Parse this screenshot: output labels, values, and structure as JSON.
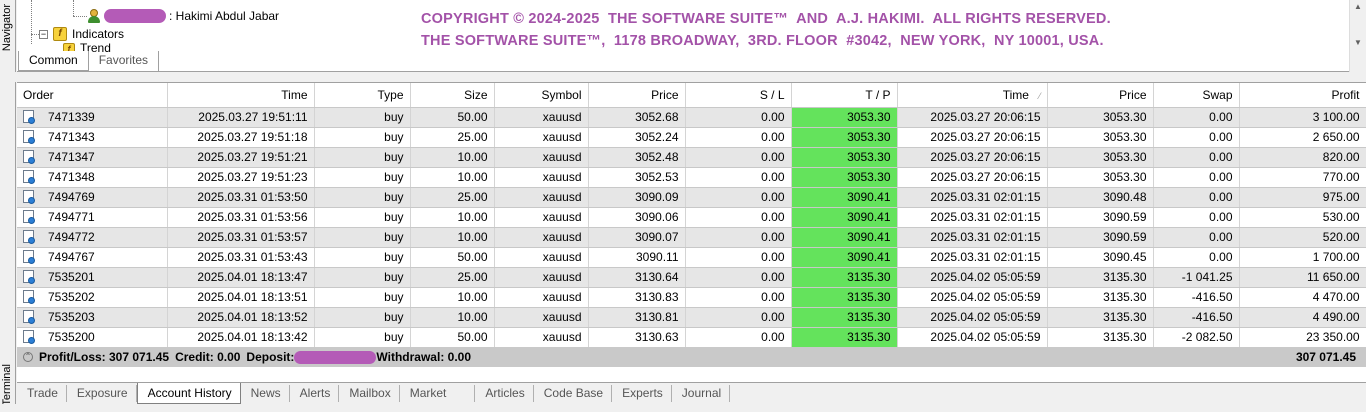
{
  "side_labels": {
    "navigator": "Navigator",
    "terminal": "Terminal"
  },
  "navigator": {
    "user_name": ": Hakimi Abdul Jabar",
    "indicators_label": "Indicators",
    "trend_label": "Trend",
    "tabs": [
      {
        "label": "Common",
        "active": true
      },
      {
        "label": "Favorites",
        "active": false
      }
    ]
  },
  "copyright": {
    "line1": "COPYRIGHT © 2024-2025  THE SOFTWARE SUITE™  AND  A.J. HAKIMI.  ALL RIGHTS RESERVED.",
    "line2": "THE SOFTWARE SUITE™,  1178 BROADWAY,  3RD. FLOOR  #3042,  NEW YORK,  NY 10001, USA."
  },
  "table": {
    "columns": [
      "Order",
      "Time",
      "Type",
      "Size",
      "Symbol",
      "Price",
      "S / L",
      "T / P",
      "Time",
      "Price",
      "Swap",
      "Profit"
    ],
    "rows": [
      [
        "7471339",
        "2025.03.27 19:51:11",
        "buy",
        "50.00",
        "xauusd",
        "3052.68",
        "0.00",
        "3053.30",
        "2025.03.27 20:06:15",
        "3053.30",
        "0.00",
        "3 100.00"
      ],
      [
        "7471343",
        "2025.03.27 19:51:18",
        "buy",
        "25.00",
        "xauusd",
        "3052.24",
        "0.00",
        "3053.30",
        "2025.03.27 20:06:15",
        "3053.30",
        "0.00",
        "2 650.00"
      ],
      [
        "7471347",
        "2025.03.27 19:51:21",
        "buy",
        "10.00",
        "xauusd",
        "3052.48",
        "0.00",
        "3053.30",
        "2025.03.27 20:06:15",
        "3053.30",
        "0.00",
        "820.00"
      ],
      [
        "7471348",
        "2025.03.27 19:51:23",
        "buy",
        "10.00",
        "xauusd",
        "3052.53",
        "0.00",
        "3053.30",
        "2025.03.27 20:06:15",
        "3053.30",
        "0.00",
        "770.00"
      ],
      [
        "7494769",
        "2025.03.31 01:53:50",
        "buy",
        "25.00",
        "xauusd",
        "3090.09",
        "0.00",
        "3090.41",
        "2025.03.31 02:01:15",
        "3090.48",
        "0.00",
        "975.00"
      ],
      [
        "7494771",
        "2025.03.31 01:53:56",
        "buy",
        "10.00",
        "xauusd",
        "3090.06",
        "0.00",
        "3090.41",
        "2025.03.31 02:01:15",
        "3090.59",
        "0.00",
        "530.00"
      ],
      [
        "7494772",
        "2025.03.31 01:53:57",
        "buy",
        "10.00",
        "xauusd",
        "3090.07",
        "0.00",
        "3090.41",
        "2025.03.31 02:01:15",
        "3090.59",
        "0.00",
        "520.00"
      ],
      [
        "7494767",
        "2025.03.31 01:53:43",
        "buy",
        "50.00",
        "xauusd",
        "3090.11",
        "0.00",
        "3090.41",
        "2025.03.31 02:01:15",
        "3090.45",
        "0.00",
        "1 700.00"
      ],
      [
        "7535201",
        "2025.04.01 18:13:47",
        "buy",
        "25.00",
        "xauusd",
        "3130.64",
        "0.00",
        "3135.30",
        "2025.04.02 05:05:59",
        "3135.30",
        "-1 041.25",
        "11 650.00"
      ],
      [
        "7535202",
        "2025.04.01 18:13:51",
        "buy",
        "10.00",
        "xauusd",
        "3130.83",
        "0.00",
        "3135.30",
        "2025.04.02 05:05:59",
        "3135.30",
        "-416.50",
        "4 470.00"
      ],
      [
        "7535203",
        "2025.04.01 18:13:52",
        "buy",
        "10.00",
        "xauusd",
        "3130.81",
        "0.00",
        "3135.30",
        "2025.04.02 05:05:59",
        "3135.30",
        "-416.50",
        "4 490.00"
      ],
      [
        "7535200",
        "2025.04.01 18:13:42",
        "buy",
        "50.00",
        "xauusd",
        "3130.63",
        "0.00",
        "3135.30",
        "2025.04.02 05:05:59",
        "3135.30",
        "-2 082.50",
        "23 350.00"
      ]
    ]
  },
  "summary": {
    "profit_loss": "Profit/Loss: 307 071.45",
    "credit": "Credit: 0.00",
    "deposit_label": "Deposit:",
    "withdrawal": "Withdrawal: 0.00",
    "total": "307 071.45"
  },
  "bottom_tabs": [
    {
      "label": "Trade",
      "active": false
    },
    {
      "label": "Exposure",
      "active": false
    },
    {
      "label": "Account History",
      "active": true
    },
    {
      "label": "News",
      "active": false
    },
    {
      "label": "Alerts",
      "active": false
    },
    {
      "label": "Mailbox",
      "active": false
    },
    {
      "label": "Market",
      "active": false
    },
    {
      "label": "Articles",
      "active": false
    },
    {
      "label": "Code Base",
      "active": false
    },
    {
      "label": "Experts",
      "active": false
    },
    {
      "label": "Journal",
      "active": false
    }
  ],
  "colors": {
    "tp_highlight": "#64e35c",
    "copyright_text": "#a352a8",
    "redaction": "#b45bb7"
  }
}
